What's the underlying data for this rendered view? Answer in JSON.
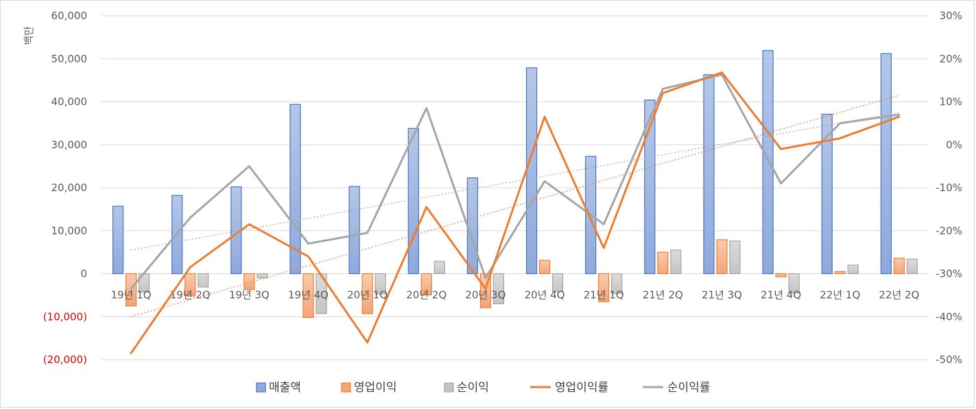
{
  "chart_data": {
    "type": "bar",
    "ylabel": "백만",
    "categories": [
      "19년 1Q",
      "19년 2Q",
      "19년 3Q",
      "19년 4Q",
      "20년 1Q",
      "20년 2Q",
      "20년 3Q",
      "20년 4Q",
      "21년 1Q",
      "21년 2Q",
      "21년 3Q",
      "21년 4Q",
      "22년 1Q",
      "22년 2Q"
    ],
    "ylim": [
      -20000,
      60000
    ],
    "y_ticks": [
      "60,000",
      "50,000",
      "40,000",
      "30,000",
      "20,000",
      "10,000",
      "0",
      "(10,000)",
      "(20,000)"
    ],
    "y2lim": [
      -50,
      30
    ],
    "y2_ticks": [
      "30%",
      "20%",
      "10%",
      "0%",
      "-10%",
      "-20%",
      "-30%",
      "-40%",
      "-50%"
    ],
    "grid": true,
    "legend_position": "bottom",
    "series": [
      {
        "name": "매출액",
        "kind": "bar",
        "axis": "left",
        "color": "#4472c4",
        "values": [
          15700,
          18200,
          20200,
          39400,
          20300,
          33800,
          22300,
          47900,
          27300,
          40400,
          46300,
          51900,
          37100,
          51200
        ]
      },
      {
        "name": "영업이익",
        "kind": "bar",
        "axis": "left",
        "color": "#ed7d31",
        "values": [
          -7500,
          -5200,
          -3700,
          -10200,
          -9300,
          -4900,
          -7900,
          3100,
          -6500,
          5000,
          7900,
          -700,
          500,
          3600
        ]
      },
      {
        "name": "순이익",
        "kind": "bar",
        "axis": "left",
        "color": "#a5a5a5",
        "values": [
          -4300,
          -3100,
          -1000,
          -9300,
          -4700,
          2900,
          -7000,
          -4200,
          -4600,
          5500,
          7600,
          -4500,
          2000,
          3400
        ]
      },
      {
        "name": "영업이익률",
        "kind": "line",
        "axis": "right",
        "color": "#ed7d31",
        "values": [
          -48.5,
          -28.5,
          -18.5,
          -26,
          -46,
          -14.5,
          -33.5,
          6.5,
          -24,
          12,
          16.8,
          -1,
          1.5,
          6.5
        ]
      },
      {
        "name": "순이익률",
        "kind": "line",
        "axis": "right",
        "color": "#a5a5a5",
        "values": [
          -33.5,
          -17,
          -5,
          -23,
          -20.5,
          8.5,
          -31,
          -8.5,
          -18.5,
          13,
          16.3,
          -9,
          5,
          7
        ]
      }
    ],
    "trendlines": [
      {
        "series": "영업이익률",
        "color": "#ed7d31",
        "style": "dotted",
        "start": -40,
        "end": 11.5
      },
      {
        "series": "순이익률",
        "color": "#a5a5a5",
        "style": "dotted",
        "start": -24.5,
        "end": 7.5
      }
    ]
  }
}
